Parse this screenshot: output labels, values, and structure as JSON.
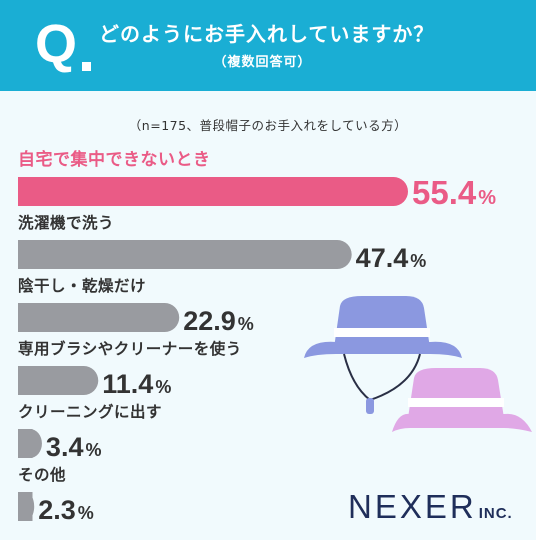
{
  "header": {
    "q_mark": "Q",
    "question": "どのようにお手入れしていますか？",
    "sub": "（複数回答可）"
  },
  "note": "（n=175、普段帽子のお手入れをしている方）",
  "colors": {
    "header": "#1aaed4",
    "highlight": "#ea5b86",
    "bar": "#999ba0",
    "hat_blue": "#8b98e0",
    "hat_pink": "#e0a8e6"
  },
  "chart_data": {
    "type": "bar",
    "orientation": "horizontal",
    "unit": "%",
    "categories": [
      "自宅で集中できないとき",
      "洗濯機で洗う",
      "陰干し・乾燥だけ",
      "専用ブラシやクリーナーを使う",
      "クリーニングに出す",
      "その他"
    ],
    "values": [
      55.4,
      47.4,
      22.9,
      11.4,
      3.4,
      2.3
    ],
    "highlight_index": 0
  },
  "logo": {
    "main": "NEXER",
    "suffix": "INC."
  }
}
